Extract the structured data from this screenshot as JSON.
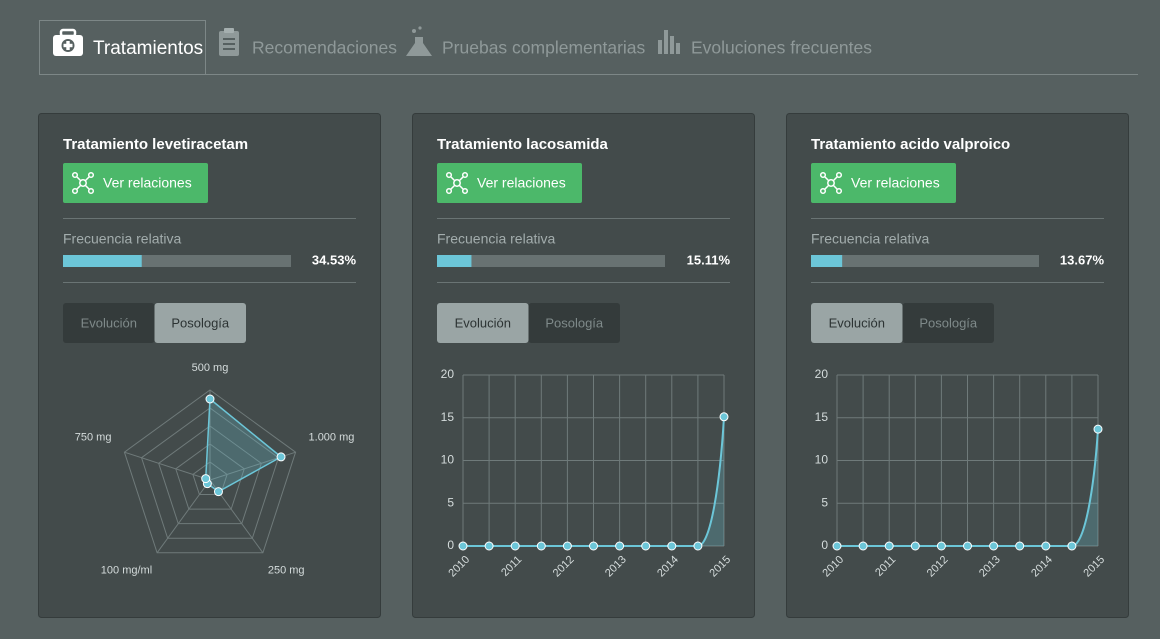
{
  "tabs": [
    {
      "label": "Tratamientos",
      "active": true
    },
    {
      "label": "Recomendaciones",
      "active": false
    },
    {
      "label": "Pruebas complementarias",
      "active": false
    },
    {
      "label": "Evoluciones frecuentes",
      "active": false
    }
  ],
  "cards": [
    {
      "title": "Tratamiento levetiracetam",
      "button": "Ver relaciones",
      "frequency_label": "Frecuencia relativa",
      "frequency": 34.53,
      "frequency_value_label": "34.53%",
      "toggle": [
        "Evolución",
        "Posología"
      ],
      "toggle_active": 1,
      "chart_data": {
        "type": "radar",
        "categories": [
          "500 mg",
          "1.000 mg",
          "250 mg",
          "100 mg/ml",
          "750 mg"
        ],
        "values": [
          90,
          83,
          16,
          5,
          5
        ],
        "rlim": [
          0,
          100
        ],
        "rings": 5,
        "color": "#6cc6d8"
      }
    },
    {
      "title": "Tratamiento lacosamida",
      "button": "Ver relaciones",
      "frequency_label": "Frecuencia relativa",
      "frequency": 15.11,
      "frequency_value_label": "15.11%",
      "toggle": [
        "Evolución",
        "Posología"
      ],
      "toggle_active": 0,
      "chart_data": {
        "type": "line",
        "categories": [
          "2010",
          null,
          "2011",
          null,
          "2012",
          null,
          "2013",
          null,
          "2014",
          null,
          "2015"
        ],
        "values": [
          0,
          0,
          0,
          0,
          0,
          0,
          0,
          0,
          0,
          0,
          15.11
        ],
        "ylim": [
          0,
          20
        ],
        "yticks": [
          0,
          5,
          10,
          15,
          20
        ],
        "grid": true,
        "color": "#6cc6d8"
      }
    },
    {
      "title": "Tratamiento acido valproico",
      "button": "Ver relaciones",
      "frequency_label": "Frecuencia relativa",
      "frequency": 13.67,
      "frequency_value_label": "13.67%",
      "toggle": [
        "Evolución",
        "Posología"
      ],
      "toggle_active": 0,
      "chart_data": {
        "type": "line",
        "categories": [
          "2010",
          null,
          "2011",
          null,
          "2012",
          null,
          "2013",
          null,
          "2014",
          null,
          "2015"
        ],
        "values": [
          0,
          0,
          0,
          0,
          0,
          0,
          0,
          0,
          0,
          0,
          13.67
        ],
        "ylim": [
          0,
          20
        ],
        "yticks": [
          0,
          5,
          10,
          15,
          20
        ],
        "grid": true,
        "color": "#6cc6d8"
      }
    }
  ]
}
